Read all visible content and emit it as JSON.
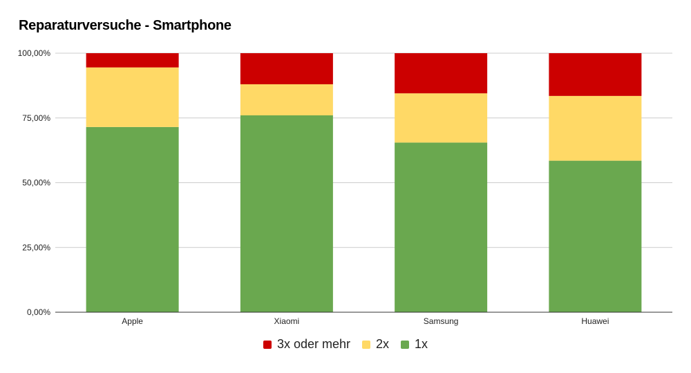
{
  "chart_data": {
    "type": "bar",
    "stacked": true,
    "title": "Reparaturversuche - Smartphone",
    "xlabel": "",
    "ylabel": "",
    "categories": [
      "Apple",
      "Xiaomi",
      "Samsung",
      "Huawei"
    ],
    "series": [
      {
        "name": "1x",
        "color": "#6aa84f",
        "values": [
          71.5,
          76,
          65.5,
          58.5
        ]
      },
      {
        "name": "2x",
        "color": "#ffd966",
        "values": [
          23,
          12,
          19,
          25
        ]
      },
      {
        "name": "3x oder mehr",
        "color": "#cc0000",
        "values": [
          5.5,
          12,
          15.5,
          16.5
        ]
      }
    ],
    "ylim": [
      0,
      100
    ],
    "yticks": [
      "0,00%",
      "25,00%",
      "50,00%",
      "75,00%",
      "100,00%"
    ],
    "legend_order": [
      "3x oder mehr",
      "2x",
      "1x"
    ],
    "legend_position": "bottom",
    "grid": true
  }
}
